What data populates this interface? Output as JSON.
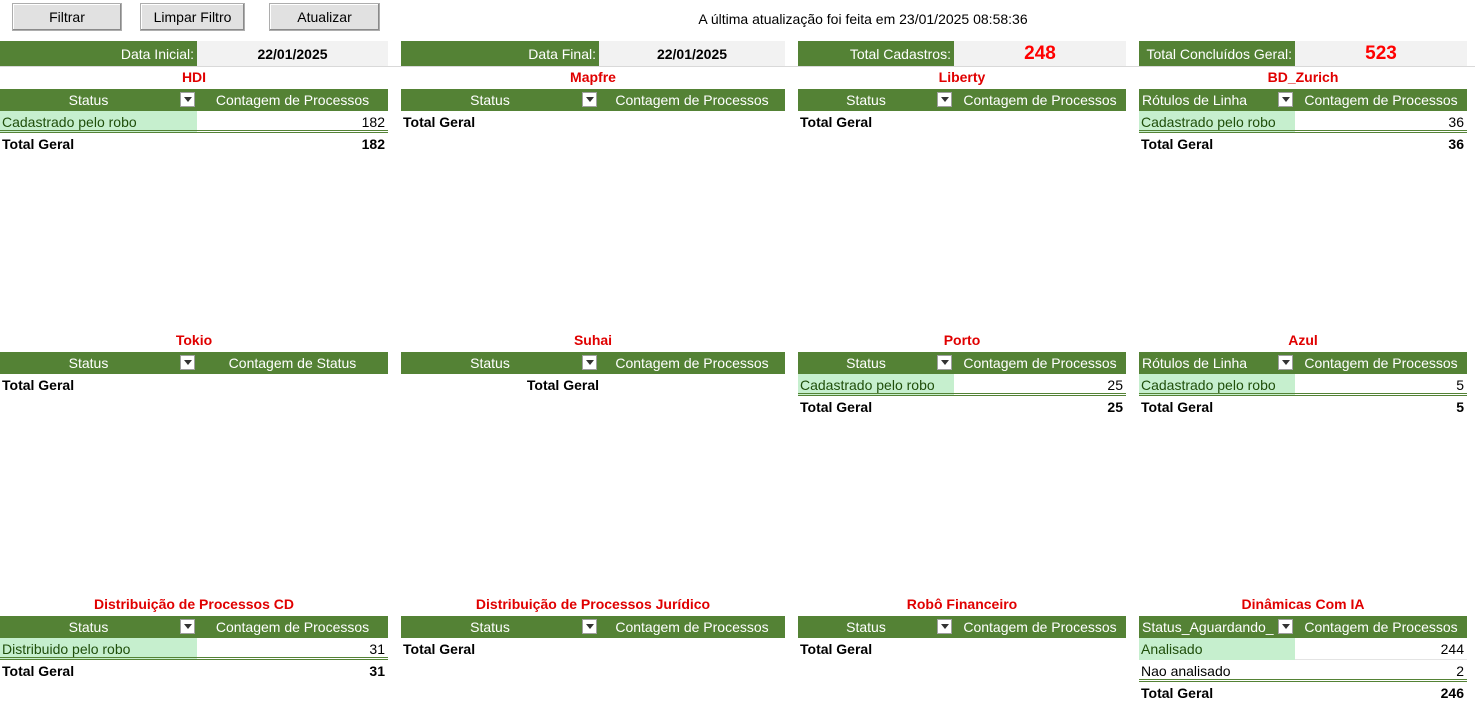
{
  "toolbar": {
    "filter_label": "Filtrar",
    "clear_label": "Limpar Filtro",
    "refresh_label": "Atualizar",
    "update_note": "A última atualização foi feita em 23/01/2025 08:58:36"
  },
  "filters": {
    "start_label": "Data Inicial:",
    "start_value": "22/01/2025",
    "end_label": "Data Final:",
    "end_value": "22/01/2025",
    "total_cadastros_label": "Total Cadastros:",
    "total_cadastros_value": "248",
    "total_concluidos_label": "Total Concluídos Geral:",
    "total_concluidos_value": "523"
  },
  "colors": {
    "header_green": "#548235",
    "title_red": "#e00000",
    "row_green": "#c6efce"
  },
  "pivots": [
    {
      "title": "HDI",
      "col1": "Status",
      "col2": "Contagem de Processos",
      "rows": [
        {
          "label": "Cadastrado pelo robo",
          "value": "182"
        }
      ],
      "total_label": "Total Geral",
      "total_value": "182"
    },
    {
      "title": "Mapfre",
      "col1": "Status",
      "col2": "Contagem de Processos",
      "rows": [],
      "total_label": "Total Geral",
      "total_value": ""
    },
    {
      "title": "Liberty",
      "col1": "Status",
      "col2": "Contagem de Processos",
      "rows": [],
      "total_label": "Total Geral",
      "total_value": ""
    },
    {
      "title": "BD_Zurich",
      "col1": "Rótulos de Linha",
      "col2": "Contagem de Processos",
      "rows": [
        {
          "label": "Cadastrado pelo robo",
          "value": "36"
        }
      ],
      "total_label": "Total Geral",
      "total_value": "36"
    },
    {
      "title": "Tokio",
      "col1": "Status",
      "col2": "Contagem de Status",
      "rows": [],
      "total_label": "Total Geral",
      "total_value": ""
    },
    {
      "title": "Suhai",
      "col1": "Status",
      "col2": "Contagem de Processos",
      "rows": [],
      "total_label": "Total Geral",
      "total_value": ""
    },
    {
      "title": "Porto",
      "col1": "Status",
      "col2": "Contagem de Processos",
      "rows": [
        {
          "label": "Cadastrado pelo robo",
          "value": "25"
        }
      ],
      "total_label": "Total Geral",
      "total_value": "25"
    },
    {
      "title": "Azul",
      "col1": "Rótulos de Linha",
      "col2": "Contagem de Processos",
      "rows": [
        {
          "label": "Cadastrado pelo robo",
          "value": "5"
        }
      ],
      "total_label": "Total Geral",
      "total_value": "5"
    },
    {
      "title": "Distribuição de Processos CD",
      "col1": "Status",
      "col2": "Contagem de Processos",
      "rows": [
        {
          "label": "Distribuido pelo robo",
          "value": "31"
        }
      ],
      "total_label": "Total Geral",
      "total_value": "31"
    },
    {
      "title": "Distribuição de Processos Jurídico",
      "col1": "Status",
      "col2": "Contagem de Processos",
      "rows": [],
      "total_label": "Total Geral",
      "total_value": ""
    },
    {
      "title": "Robô Financeiro",
      "col1": "Status",
      "col2": "Contagem de Processos",
      "rows": [],
      "total_label": "Total Geral",
      "total_value": ""
    },
    {
      "title": "Dinâmicas Com IA",
      "col1": "Status_Aguardando_",
      "col2": "Contagem de Processos",
      "rows": [
        {
          "label": "Analisado",
          "value": "244"
        },
        {
          "label": "Nao analisado",
          "value": "2"
        }
      ],
      "total_label": "Total Geral",
      "total_value": "246"
    }
  ]
}
